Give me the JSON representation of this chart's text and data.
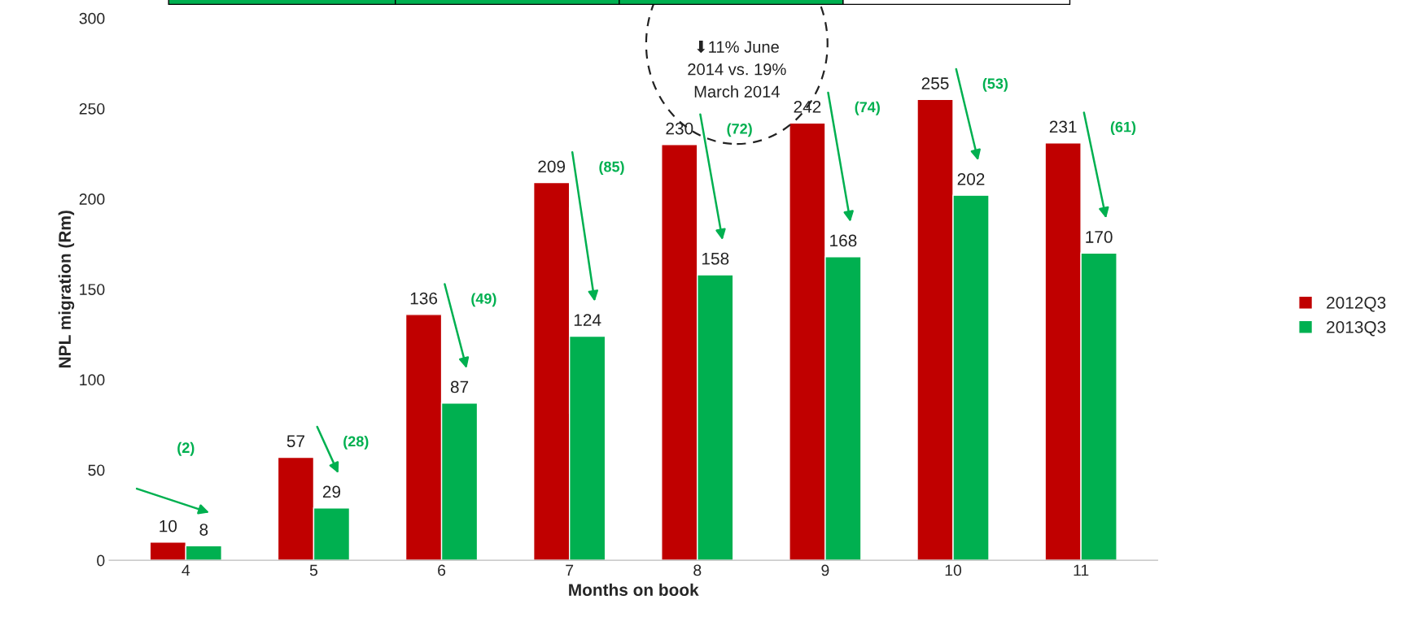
{
  "chart_data": {
    "type": "bar",
    "xlabel": "Months on book",
    "ylabel": "NPL migration (Rm)",
    "categories": [
      "4",
      "5",
      "6",
      "7",
      "8",
      "9",
      "10",
      "11"
    ],
    "series": [
      {
        "name": "2012Q3",
        "color": "#c00000",
        "values": [
          10,
          57,
          136,
          209,
          230,
          242,
          255,
          231
        ]
      },
      {
        "name": "2013Q3",
        "color": "#00b050",
        "values": [
          8,
          29,
          87,
          124,
          158,
          168,
          202,
          170
        ]
      }
    ],
    "ylim": [
      0,
      300
    ],
    "yticks": [
      0,
      50,
      100,
      150,
      200,
      250,
      300
    ],
    "grid": false,
    "legend": "right",
    "data_labels": true,
    "annotations": [
      "(2)",
      "(28)",
      "(49)",
      "(85)",
      "(72)",
      "(74)",
      "(53)",
      "(61)",
      "⬇11% June\n2014 vs. 19%\nMarch 2014"
    ]
  }
}
